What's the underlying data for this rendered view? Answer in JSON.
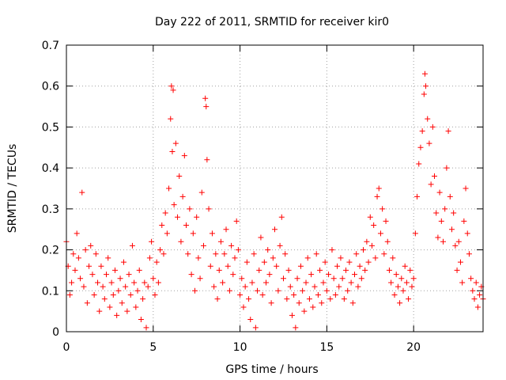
{
  "chart_data": {
    "type": "scatter",
    "title": "Day 222 of 2011, SRMTID for receiver kir0",
    "xlabel": "GPS time / hours",
    "ylabel": "SRMTID / TECUs",
    "xlim": [
      0,
      24
    ],
    "ylim": [
      0,
      0.7
    ],
    "xticks": [
      "0",
      "5",
      "10",
      "15",
      "20"
    ],
    "yticks": [
      "0",
      "0.1",
      "0.2",
      "0.3",
      "0.4",
      "0.5",
      "0.6",
      "0.7"
    ],
    "grid": true,
    "marker": "+",
    "color": "#ff0000",
    "series": [
      {
        "name": "SRMTID",
        "points": [
          [
            0.0,
            0.22
          ],
          [
            0.1,
            0.16
          ],
          [
            0.2,
            0.09
          ],
          [
            0.3,
            0.12
          ],
          [
            0.4,
            0.19
          ],
          [
            0.5,
            0.15
          ],
          [
            0.6,
            0.24
          ],
          [
            0.7,
            0.18
          ],
          [
            0.8,
            0.13
          ],
          [
            0.9,
            0.34
          ],
          [
            1.0,
            0.11
          ],
          [
            1.1,
            0.2
          ],
          [
            1.2,
            0.07
          ],
          [
            1.3,
            0.16
          ],
          [
            1.4,
            0.21
          ],
          [
            1.5,
            0.14
          ],
          [
            1.6,
            0.09
          ],
          [
            1.7,
            0.19
          ],
          [
            1.8,
            0.12
          ],
          [
            1.9,
            0.05
          ],
          [
            2.0,
            0.16
          ],
          [
            2.1,
            0.11
          ],
          [
            2.2,
            0.08
          ],
          [
            2.3,
            0.14
          ],
          [
            2.4,
            0.18
          ],
          [
            2.5,
            0.06
          ],
          [
            2.6,
            0.12
          ],
          [
            2.7,
            0.09
          ],
          [
            2.8,
            0.15
          ],
          [
            2.9,
            0.04
          ],
          [
            3.0,
            0.1
          ],
          [
            3.1,
            0.13
          ],
          [
            3.2,
            0.07
          ],
          [
            3.3,
            0.17
          ],
          [
            3.4,
            0.11
          ],
          [
            3.5,
            0.05
          ],
          [
            3.6,
            0.14
          ],
          [
            3.7,
            0.09
          ],
          [
            3.8,
            0.21
          ],
          [
            3.9,
            0.12
          ],
          [
            4.0,
            0.06
          ],
          [
            4.1,
            0.1
          ],
          [
            4.2,
            0.15
          ],
          [
            4.3,
            0.03
          ],
          [
            4.4,
            0.08
          ],
          [
            4.5,
            0.12
          ],
          [
            4.6,
            0.01
          ],
          [
            4.7,
            0.11
          ],
          [
            4.8,
            0.18
          ],
          [
            4.9,
            0.22
          ],
          [
            5.0,
            0.13
          ],
          [
            5.1,
            0.09
          ],
          [
            5.2,
            0.17
          ],
          [
            5.3,
            0.12
          ],
          [
            5.4,
            0.2
          ],
          [
            5.5,
            0.26
          ],
          [
            5.6,
            0.19
          ],
          [
            5.7,
            0.29
          ],
          [
            5.8,
            0.24
          ],
          [
            5.9,
            0.35
          ],
          [
            6.0,
            0.52
          ],
          [
            6.05,
            0.6
          ],
          [
            6.1,
            0.44
          ],
          [
            6.15,
            0.59
          ],
          [
            6.2,
            0.31
          ],
          [
            6.3,
            0.46
          ],
          [
            6.4,
            0.28
          ],
          [
            6.5,
            0.38
          ],
          [
            6.6,
            0.22
          ],
          [
            6.7,
            0.33
          ],
          [
            6.8,
            0.43
          ],
          [
            6.9,
            0.26
          ],
          [
            7.0,
            0.19
          ],
          [
            7.1,
            0.3
          ],
          [
            7.2,
            0.14
          ],
          [
            7.3,
            0.24
          ],
          [
            7.4,
            0.1
          ],
          [
            7.5,
            0.28
          ],
          [
            7.6,
            0.18
          ],
          [
            7.7,
            0.13
          ],
          [
            7.8,
            0.34
          ],
          [
            7.9,
            0.21
          ],
          [
            8.0,
            0.57
          ],
          [
            8.05,
            0.55
          ],
          [
            8.1,
            0.42
          ],
          [
            8.2,
            0.3
          ],
          [
            8.3,
            0.16
          ],
          [
            8.4,
            0.24
          ],
          [
            8.5,
            0.11
          ],
          [
            8.6,
            0.19
          ],
          [
            8.7,
            0.08
          ],
          [
            8.8,
            0.15
          ],
          [
            8.9,
            0.22
          ],
          [
            9.0,
            0.12
          ],
          [
            9.1,
            0.19
          ],
          [
            9.2,
            0.25
          ],
          [
            9.3,
            0.16
          ],
          [
            9.4,
            0.1
          ],
          [
            9.5,
            0.21
          ],
          [
            9.6,
            0.14
          ],
          [
            9.7,
            0.18
          ],
          [
            9.8,
            0.27
          ],
          [
            9.9,
            0.2
          ],
          [
            10.0,
            0.09
          ],
          [
            10.1,
            0.13
          ],
          [
            10.2,
            0.06
          ],
          [
            10.3,
            0.11
          ],
          [
            10.4,
            0.17
          ],
          [
            10.5,
            0.08
          ],
          [
            10.6,
            0.03
          ],
          [
            10.7,
            0.12
          ],
          [
            10.8,
            0.19
          ],
          [
            10.9,
            0.01
          ],
          [
            11.0,
            0.1
          ],
          [
            11.1,
            0.15
          ],
          [
            11.2,
            0.23
          ],
          [
            11.3,
            0.09
          ],
          [
            11.4,
            0.17
          ],
          [
            11.5,
            0.12
          ],
          [
            11.6,
            0.2
          ],
          [
            11.7,
            0.14
          ],
          [
            11.8,
            0.07
          ],
          [
            11.9,
            0.18
          ],
          [
            12.0,
            0.25
          ],
          [
            12.1,
            0.16
          ],
          [
            12.2,
            0.1
          ],
          [
            12.3,
            0.21
          ],
          [
            12.4,
            0.28
          ],
          [
            12.5,
            0.13
          ],
          [
            12.6,
            0.19
          ],
          [
            12.7,
            0.08
          ],
          [
            12.8,
            0.15
          ],
          [
            12.9,
            0.11
          ],
          [
            13.0,
            0.04
          ],
          [
            13.1,
            0.09
          ],
          [
            13.2,
            0.01
          ],
          [
            13.3,
            0.13
          ],
          [
            13.4,
            0.07
          ],
          [
            13.5,
            0.16
          ],
          [
            13.6,
            0.1
          ],
          [
            13.7,
            0.05
          ],
          [
            13.8,
            0.12
          ],
          [
            13.9,
            0.18
          ],
          [
            14.0,
            0.08
          ],
          [
            14.1,
            0.14
          ],
          [
            14.2,
            0.06
          ],
          [
            14.3,
            0.11
          ],
          [
            14.4,
            0.19
          ],
          [
            14.5,
            0.09
          ],
          [
            14.6,
            0.15
          ],
          [
            14.7,
            0.07
          ],
          [
            14.8,
            0.12
          ],
          [
            14.9,
            0.17
          ],
          [
            15.0,
            0.1
          ],
          [
            15.1,
            0.14
          ],
          [
            15.2,
            0.08
          ],
          [
            15.3,
            0.2
          ],
          [
            15.4,
            0.13
          ],
          [
            15.5,
            0.09
          ],
          [
            15.6,
            0.16
          ],
          [
            15.7,
            0.11
          ],
          [
            15.8,
            0.18
          ],
          [
            15.9,
            0.13
          ],
          [
            16.0,
            0.08
          ],
          [
            16.1,
            0.15
          ],
          [
            16.2,
            0.1
          ],
          [
            16.3,
            0.17
          ],
          [
            16.4,
            0.12
          ],
          [
            16.5,
            0.07
          ],
          [
            16.6,
            0.14
          ],
          [
            16.7,
            0.19
          ],
          [
            16.8,
            0.11
          ],
          [
            16.9,
            0.16
          ],
          [
            17.0,
            0.13
          ],
          [
            17.1,
            0.2
          ],
          [
            17.2,
            0.15
          ],
          [
            17.3,
            0.22
          ],
          [
            17.4,
            0.17
          ],
          [
            17.5,
            0.28
          ],
          [
            17.6,
            0.21
          ],
          [
            17.7,
            0.26
          ],
          [
            17.8,
            0.18
          ],
          [
            17.9,
            0.33
          ],
          [
            18.0,
            0.35
          ],
          [
            18.1,
            0.24
          ],
          [
            18.2,
            0.3
          ],
          [
            18.3,
            0.19
          ],
          [
            18.4,
            0.27
          ],
          [
            18.5,
            0.22
          ],
          [
            18.6,
            0.15
          ],
          [
            18.7,
            0.12
          ],
          [
            18.8,
            0.18
          ],
          [
            18.9,
            0.09
          ],
          [
            19.0,
            0.14
          ],
          [
            19.1,
            0.11
          ],
          [
            19.2,
            0.07
          ],
          [
            19.3,
            0.13
          ],
          [
            19.4,
            0.1
          ],
          [
            19.5,
            0.16
          ],
          [
            19.6,
            0.12
          ],
          [
            19.7,
            0.08
          ],
          [
            19.8,
            0.15
          ],
          [
            19.9,
            0.11
          ],
          [
            20.0,
            0.13
          ],
          [
            20.1,
            0.24
          ],
          [
            20.2,
            0.33
          ],
          [
            20.3,
            0.41
          ],
          [
            20.4,
            0.45
          ],
          [
            20.5,
            0.49
          ],
          [
            20.6,
            0.58
          ],
          [
            20.65,
            0.63
          ],
          [
            20.7,
            0.6
          ],
          [
            20.8,
            0.52
          ],
          [
            20.9,
            0.46
          ],
          [
            21.0,
            0.36
          ],
          [
            21.1,
            0.5
          ],
          [
            21.2,
            0.38
          ],
          [
            21.3,
            0.29
          ],
          [
            21.4,
            0.23
          ],
          [
            21.5,
            0.34
          ],
          [
            21.6,
            0.27
          ],
          [
            21.7,
            0.22
          ],
          [
            21.8,
            0.3
          ],
          [
            21.9,
            0.4
          ],
          [
            22.0,
            0.49
          ],
          [
            22.1,
            0.33
          ],
          [
            22.2,
            0.25
          ],
          [
            22.3,
            0.29
          ],
          [
            22.4,
            0.21
          ],
          [
            22.5,
            0.15
          ],
          [
            22.6,
            0.22
          ],
          [
            22.7,
            0.17
          ],
          [
            22.8,
            0.12
          ],
          [
            22.9,
            0.27
          ],
          [
            23.0,
            0.35
          ],
          [
            23.1,
            0.24
          ],
          [
            23.2,
            0.19
          ],
          [
            23.3,
            0.13
          ],
          [
            23.4,
            0.1
          ],
          [
            23.5,
            0.08
          ],
          [
            23.6,
            0.12
          ],
          [
            23.7,
            0.06
          ],
          [
            23.8,
            0.09
          ],
          [
            23.9,
            0.11
          ],
          [
            24.0,
            0.08
          ]
        ]
      }
    ]
  }
}
